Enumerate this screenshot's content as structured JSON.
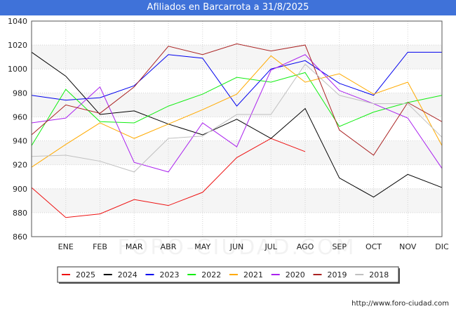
{
  "title": "Afiliados en Barcarrota a 31/8/2025",
  "footer_url": "http://www.foro-ciudad.com",
  "watermark": "FORO-CIUDAD.COM",
  "chart_data": {
    "type": "line",
    "title": "Afiliados en Barcarrota a 31/8/2025",
    "xlabel": "",
    "ylabel": "",
    "ylim": [
      860,
      1040
    ],
    "yticks": [
      860,
      880,
      900,
      920,
      940,
      960,
      980,
      1000,
      1020,
      1040
    ],
    "categories": [
      "",
      "ENE",
      "FEB",
      "MAR",
      "ABR",
      "MAY",
      "JUN",
      "JUL",
      "AGO",
      "SEP",
      "OCT",
      "NOV",
      "DIC"
    ],
    "grid": true,
    "legend_position": "bottom",
    "series": [
      {
        "name": "2025",
        "color": "#ee1111",
        "values": [
          901,
          876,
          879,
          891,
          886,
          897,
          926,
          942,
          931,
          null,
          null,
          null,
          null
        ]
      },
      {
        "name": "2024",
        "color": "#000000",
        "values": [
          1014,
          994,
          962,
          965,
          954,
          945,
          958,
          942,
          967,
          909,
          893,
          912,
          901
        ]
      },
      {
        "name": "2023",
        "color": "#0000ee",
        "values": [
          978,
          974,
          976,
          986,
          1012,
          1009,
          969,
          1000,
          1007,
          988,
          978,
          1014,
          1014
        ]
      },
      {
        "name": "2022",
        "color": "#11ee11",
        "values": [
          936,
          983,
          956,
          955,
          969,
          979,
          993,
          989,
          997,
          952,
          964,
          972,
          978
        ]
      },
      {
        "name": "2021",
        "color": "#ffaa00",
        "values": [
          918,
          937,
          955,
          942,
          954,
          966,
          979,
          1011,
          989,
          996,
          979,
          989,
          936
        ]
      },
      {
        "name": "2020",
        "color": "#aa22ee",
        "values": [
          955,
          959,
          985,
          922,
          914,
          955,
          935,
          999,
          1012,
          982,
          971,
          959,
          917
        ]
      },
      {
        "name": "2019",
        "color": "#aa2222",
        "values": [
          945,
          970,
          963,
          985,
          1019,
          1012,
          1021,
          1015,
          1020,
          949,
          928,
          972,
          956
        ]
      },
      {
        "name": "2018",
        "color": "#c0c0c0",
        "values": [
          927,
          928,
          923,
          914,
          942,
          944,
          962,
          962,
          1004,
          978,
          971,
          971,
          943
        ]
      }
    ]
  }
}
